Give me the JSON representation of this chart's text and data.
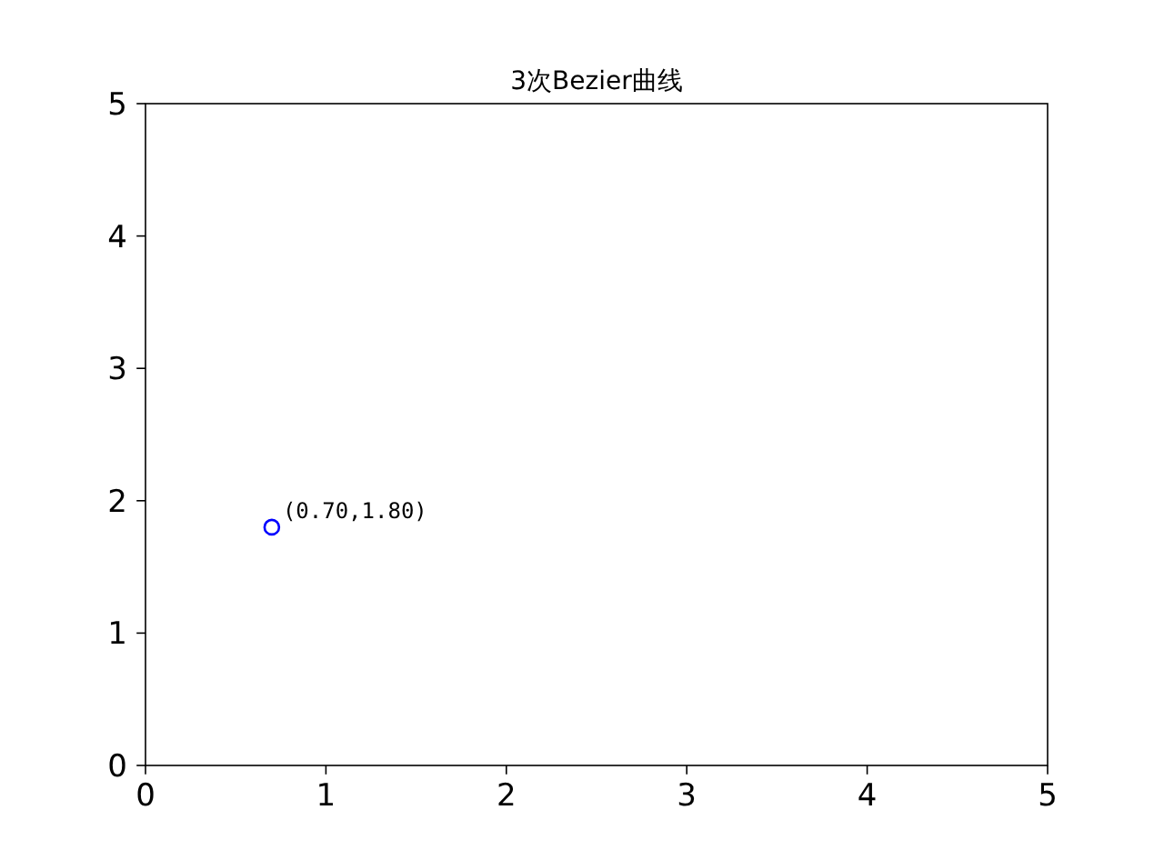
{
  "chart_data": {
    "type": "scatter",
    "title": "3次Bezier曲线",
    "marker": "circle",
    "series": [
      {
        "color": "#0000ff",
        "x": [
          0.7
        ],
        "values": [
          1.8
        ]
      }
    ],
    "xlim": [
      0,
      5
    ],
    "ylim": [
      0,
      5
    ],
    "xticks": [
      0,
      1,
      2,
      3,
      4,
      5
    ],
    "yticks": [
      0,
      1,
      2,
      3,
      4,
      5
    ],
    "annotations": [
      {
        "text": "(0.70,1.80)",
        "x": 0.7,
        "y": 1.8
      }
    ]
  }
}
